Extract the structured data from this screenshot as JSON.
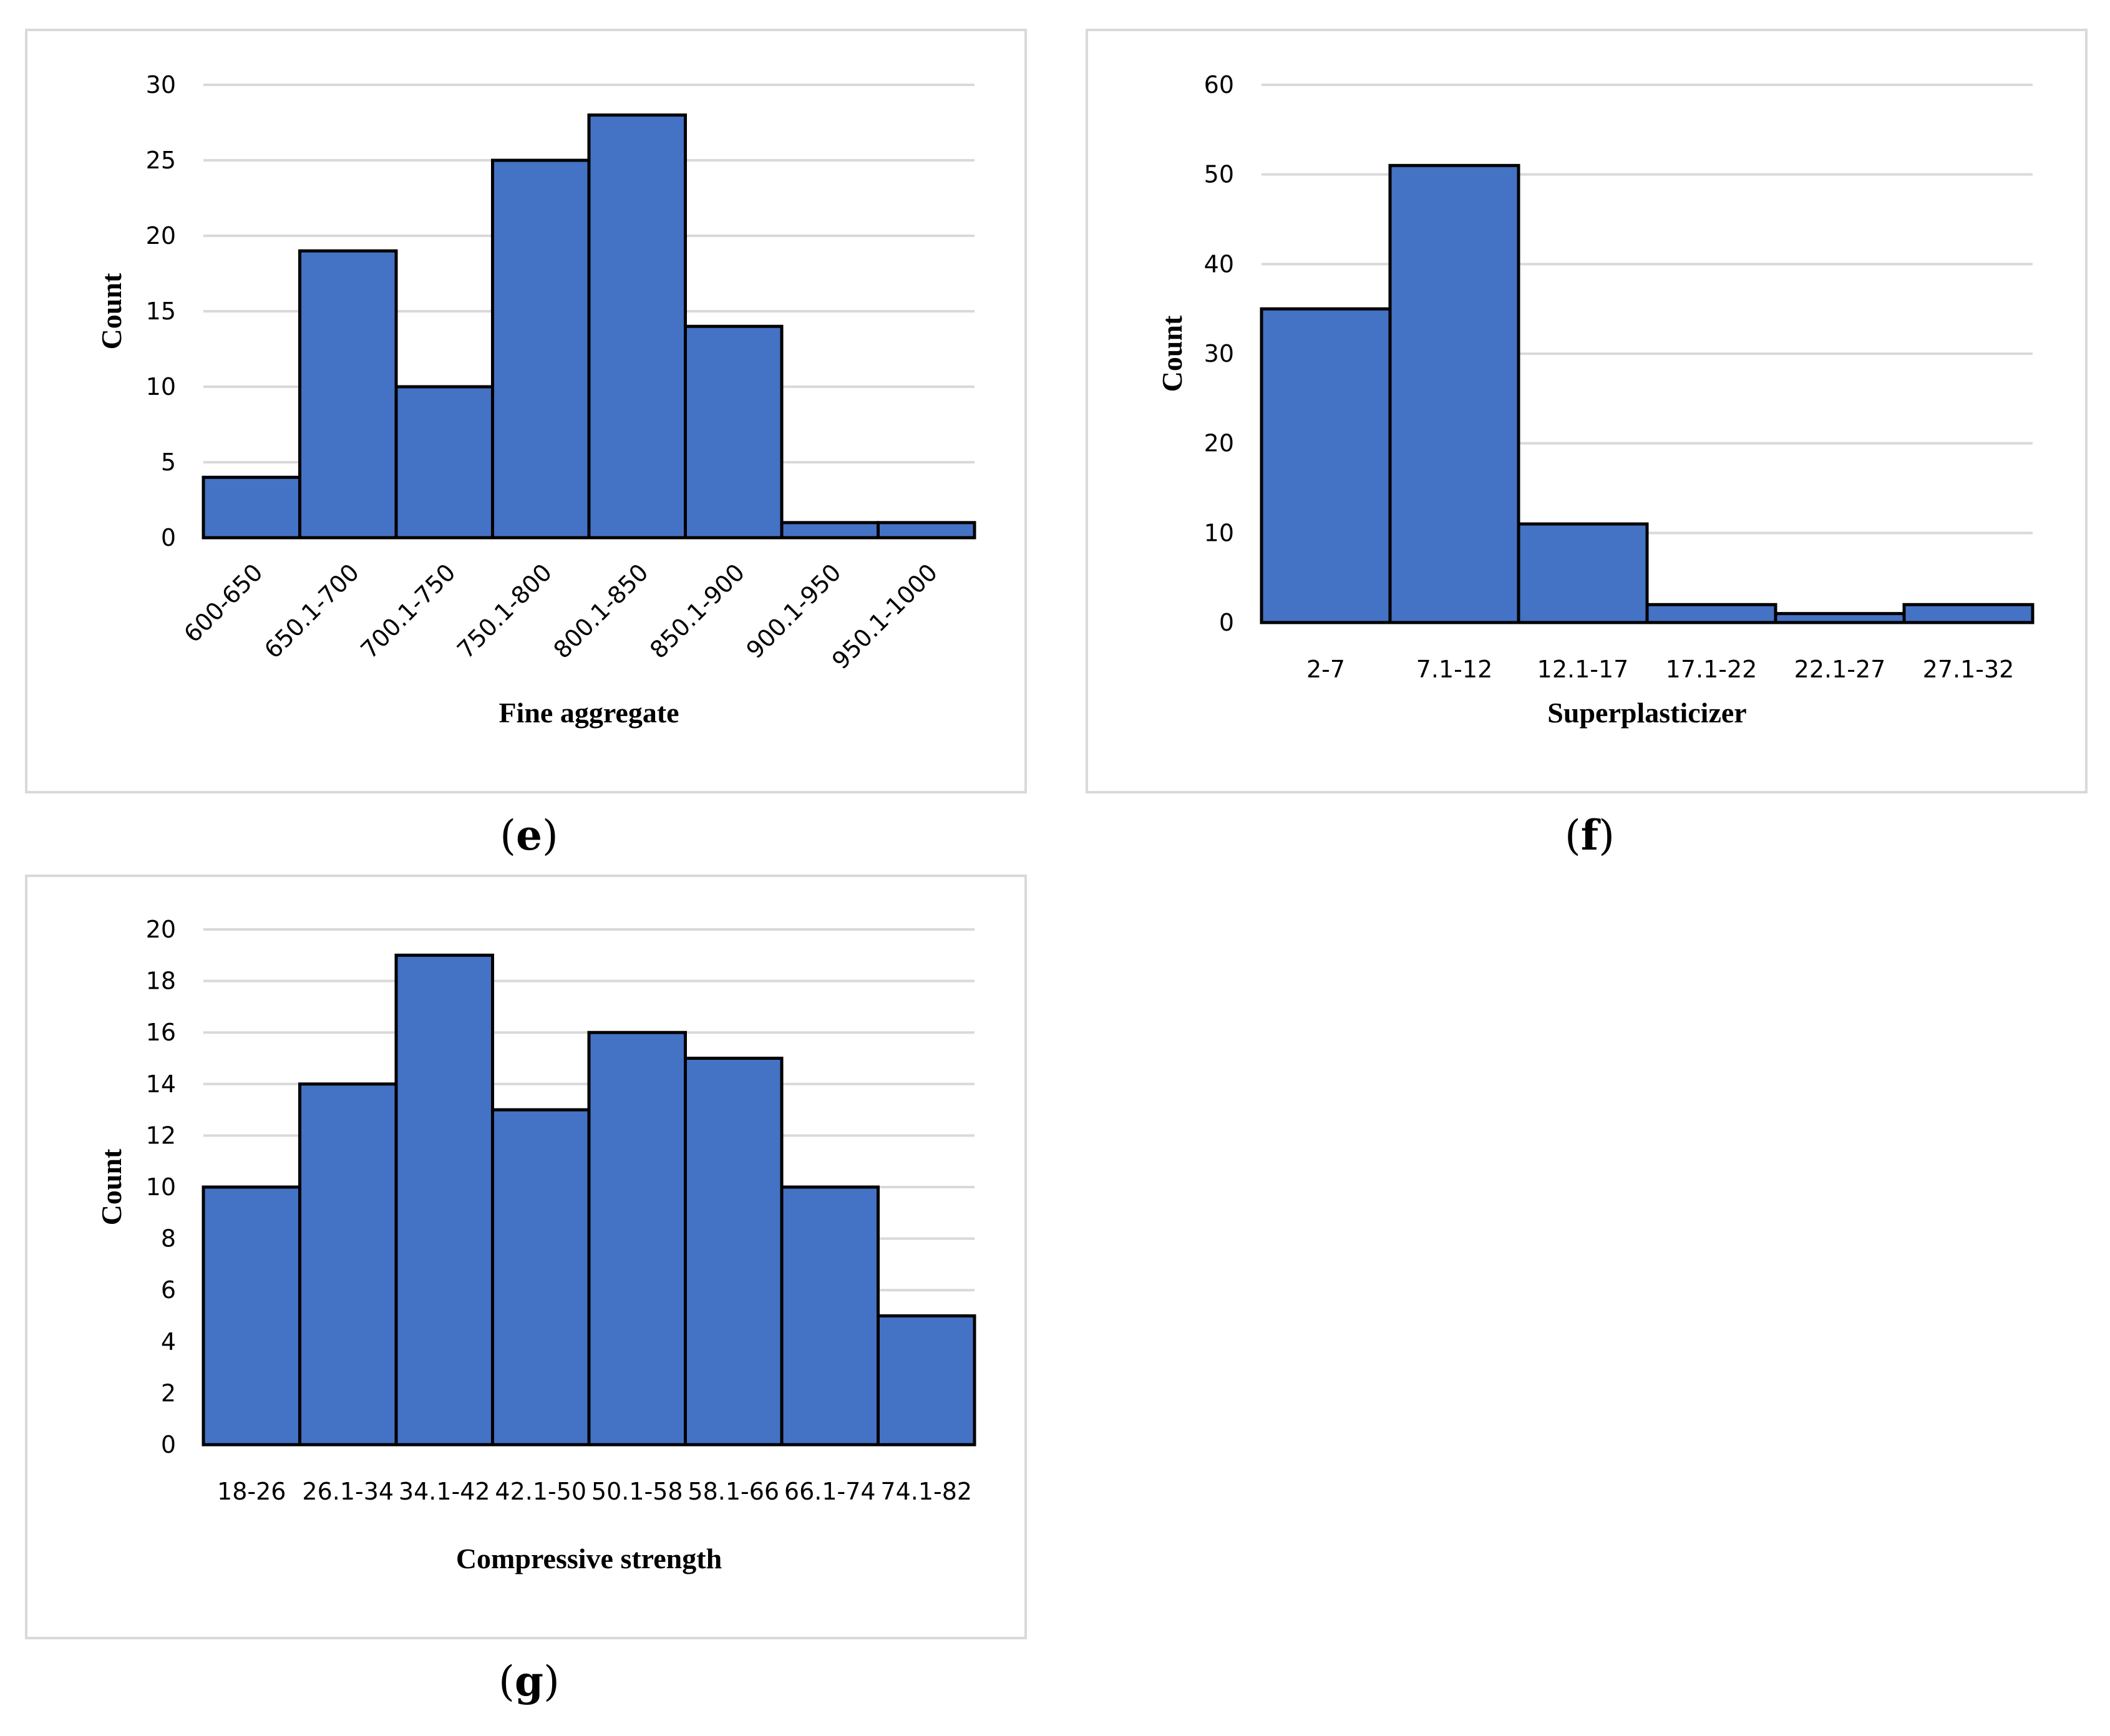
{
  "chart_data": [
    {
      "type": "bar",
      "panel": "e",
      "caption_letter": "e",
      "xlabel": "Fine aggregate",
      "ylabel": "Count",
      "ylim": [
        0,
        30
      ],
      "ytick_step": 5,
      "categories": [
        "600-650",
        "650.1-700",
        "700.1-750",
        "750.1-800",
        "800.1-850",
        "850.1-900",
        "900.1-950",
        "950.1-1000"
      ],
      "values": [
        4,
        19,
        10,
        25,
        28,
        14,
        1,
        1
      ],
      "rotated_labels": true,
      "grid": true
    },
    {
      "type": "bar",
      "panel": "f",
      "caption_letter": "f",
      "xlabel": "Superplasticizer",
      "ylabel": "Count",
      "ylim": [
        0,
        60
      ],
      "ytick_step": 10,
      "categories": [
        "2-7",
        "7.1-12",
        "12.1-17",
        "17.1-22",
        "22.1-27",
        "27.1-32"
      ],
      "values": [
        35,
        51,
        11,
        2,
        1,
        2
      ],
      "rotated_labels": false,
      "grid": true
    },
    {
      "type": "bar",
      "panel": "g",
      "caption_letter": "g",
      "xlabel": "Compressive strength",
      "ylabel": "Count",
      "ylim": [
        0,
        20
      ],
      "ytick_step": 2,
      "categories": [
        "18-26",
        "26.1-34",
        "34.1-42",
        "42.1-50",
        "50.1-58",
        "58.1-66",
        "66.1-74",
        "74.1-82"
      ],
      "values": [
        10,
        14,
        19,
        13,
        16,
        15,
        10,
        5
      ],
      "rotated_labels": false,
      "grid": true
    }
  ]
}
